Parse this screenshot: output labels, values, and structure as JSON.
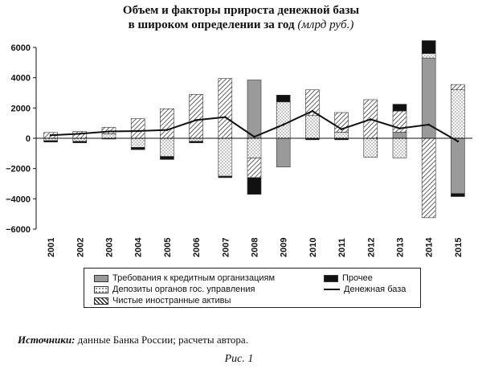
{
  "title_line1": "Объем и факторы прироста денежной базы",
  "title_line2": "в широком определении за год",
  "title_unit": "(млрд руб.)",
  "source_label": "Источники:",
  "source_text": " данные Банка России; расчеты автора.",
  "figure_caption": "Рис. 1",
  "chart_data": {
    "type": "bar",
    "stacked": true,
    "title": "Объем и факторы прироста денежной базы в широком определении за год (млрд руб.)",
    "categories": [
      "2001",
      "2002",
      "2003",
      "2004",
      "2005",
      "2006",
      "2007",
      "2008",
      "2009",
      "2010",
      "2011",
      "2012",
      "2013",
      "2014",
      "2015"
    ],
    "ylim": [
      -6000,
      6000
    ],
    "yticks": [
      -6000,
      -4000,
      -2000,
      0,
      2000,
      4000,
      6000
    ],
    "ytick_labels": [
      "−6000",
      "−4000",
      "−2000",
      "0",
      "2000",
      "4000",
      "6000"
    ],
    "grid": false,
    "legend_position": "bottom",
    "series": [
      {
        "name": "Требования к кредитным организациям",
        "kind": "bar",
        "color": "#9a9a9a",
        "pattern": "solid-gray",
        "values": [
          0,
          0,
          0,
          0,
          0,
          0,
          0,
          3850,
          -1900,
          0,
          0,
          0,
          400,
          5300,
          -3650
        ]
      },
      {
        "name": "Депозиты органов гос. управления",
        "kind": "bar",
        "color": "#ffffff",
        "pattern": "dots",
        "values": [
          -150,
          -200,
          300,
          -600,
          -1200,
          -200,
          -2500,
          -1300,
          2400,
          1500,
          400,
          -1250,
          -1300,
          300,
          3200
        ]
      },
      {
        "name": "Чистые иностранные активы",
        "kind": "bar",
        "color": "#ffffff",
        "pattern": "hatch",
        "values": [
          380,
          450,
          420,
          1300,
          1950,
          2900,
          3950,
          -1300,
          0,
          1700,
          1300,
          2550,
          1400,
          -5250,
          350
        ]
      },
      {
        "name": "Прочее",
        "kind": "bar",
        "color": "#111111",
        "pattern": "solid-black",
        "values": [
          -100,
          -100,
          -50,
          -150,
          -200,
          -100,
          -100,
          -1100,
          450,
          -100,
          -100,
          0,
          450,
          850,
          -200
        ]
      },
      {
        "name": "Денежная база",
        "kind": "line",
        "color": "#111111",
        "values": [
          200,
          300,
          450,
          480,
          550,
          1200,
          1400,
          100,
          900,
          1800,
          600,
          1250,
          650,
          900,
          -200
        ]
      }
    ]
  },
  "legend_icons": {
    "solid-gray": "gray-swatch-icon",
    "dots": "dotted-swatch-icon",
    "hatch": "hatched-swatch-icon",
    "solid-black": "black-swatch-icon",
    "line": "line-icon"
  }
}
